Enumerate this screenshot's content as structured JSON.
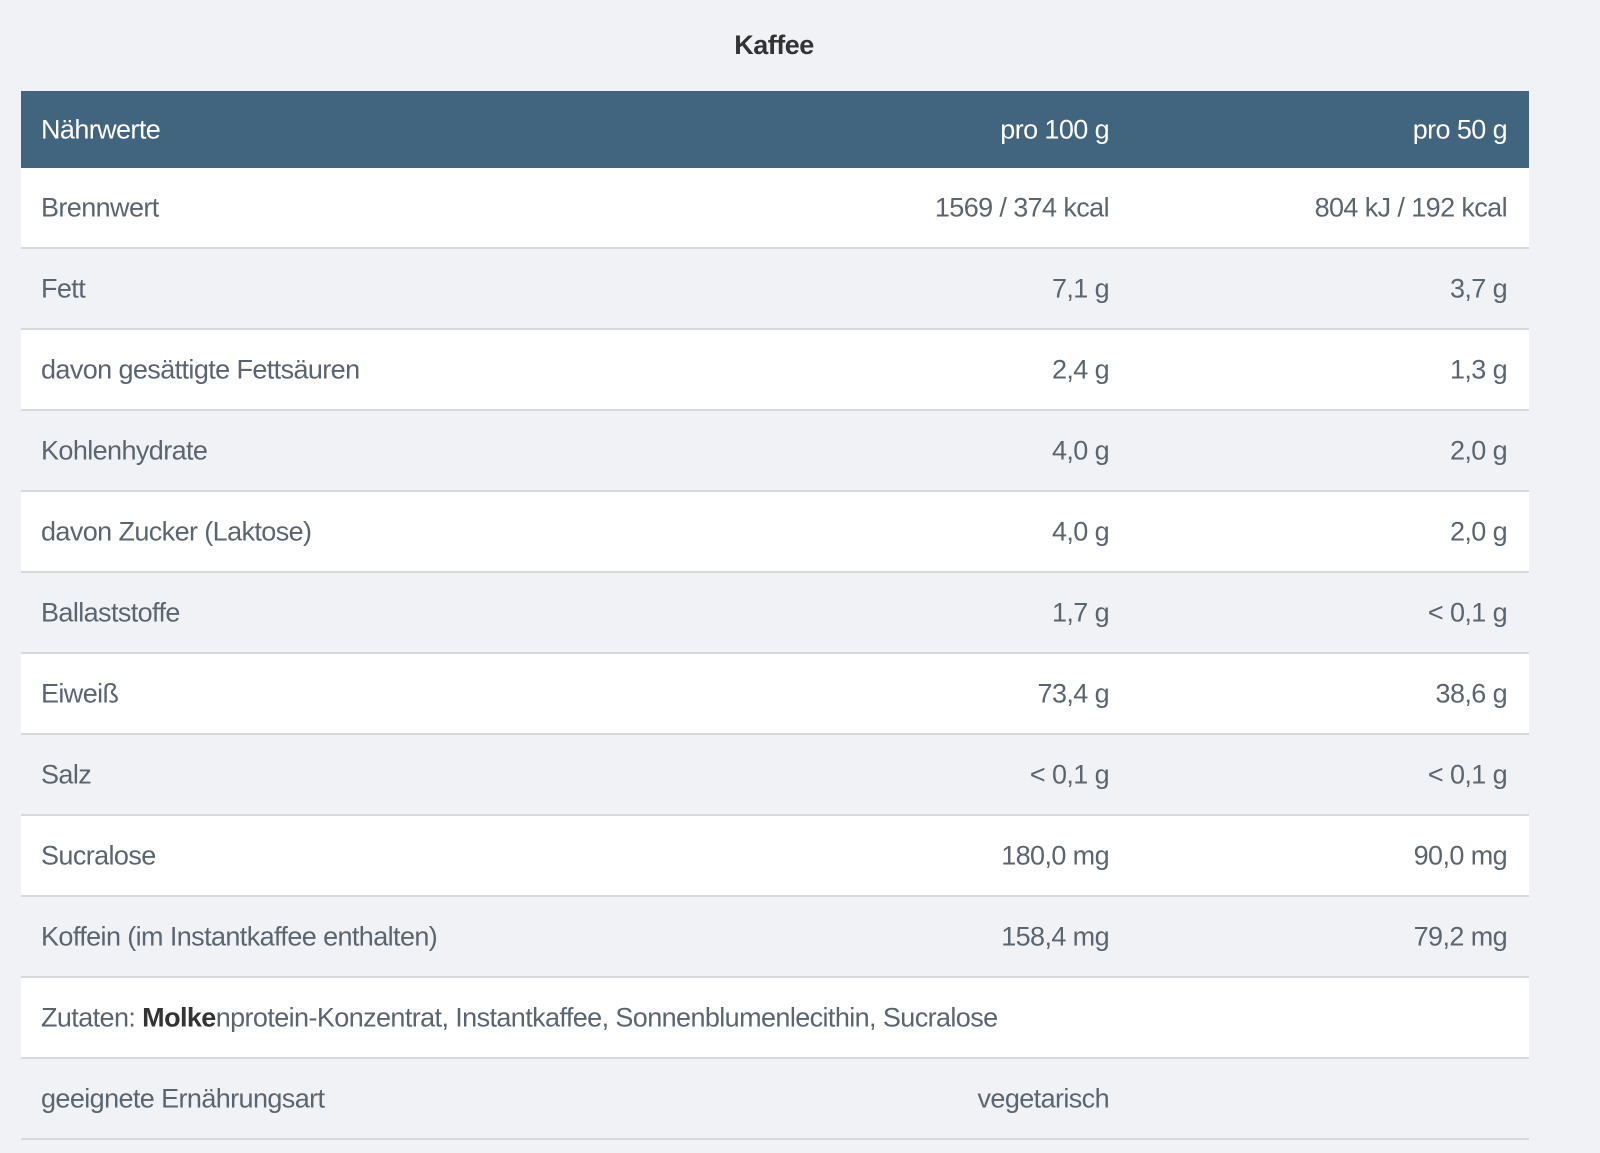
{
  "title": "Kaffee",
  "header": [
    "Nährwerte",
    "pro 100 g",
    "pro 50 g"
  ],
  "rows": [
    [
      "Brennwert",
      "1569 / 374 kcal",
      "804 kJ / 192 kcal"
    ],
    [
      "Fett",
      "7,1 g",
      "3,7 g"
    ],
    [
      "davon gesättigte Fettsäuren",
      "2,4 g",
      "1,3 g"
    ],
    [
      "Kohlenhydrate",
      "4,0 g",
      "2,0 g"
    ],
    [
      "davon Zucker (Laktose)",
      "4,0 g",
      "2,0 g"
    ],
    [
      "Ballaststoffe",
      "1,7 g",
      "< 0,1 g"
    ],
    [
      "Eiweiß",
      "73,4 g",
      "38,6 g"
    ],
    [
      "Salz",
      "< 0,1 g",
      "< 0,1 g"
    ],
    [
      "Sucralose",
      "180,0 mg",
      "90,0 mg"
    ],
    [
      "Koffein (im Instantkaffee enthalten)",
      "158,4 mg",
      "79,2 mg"
    ]
  ],
  "ingredients": {
    "prefix": "Zutaten: ",
    "bold": "Molke",
    "rest": "nprotein-Konzentrat, Instantkaffee, Sonnenblumenlecithin, Sucralose"
  },
  "diet": {
    "label": "geeignete Ernährungsart",
    "value": "vegetarisch"
  },
  "colors": {
    "header_bg": "#41657f",
    "page_bg": "#f1f2f5"
  }
}
